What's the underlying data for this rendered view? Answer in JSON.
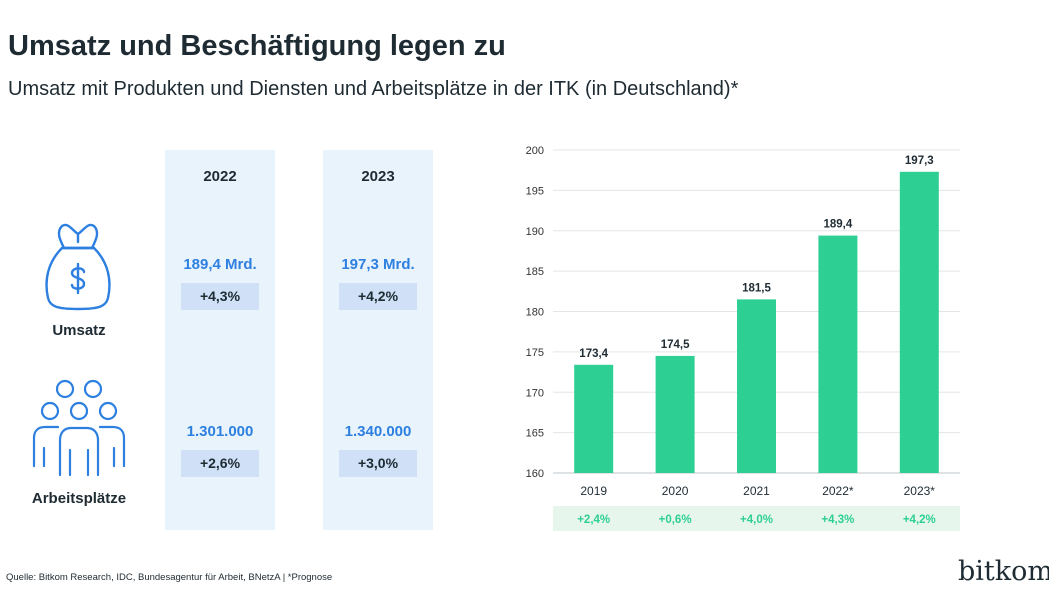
{
  "header": {
    "title": "Umsatz und Beschäftigung legen zu",
    "subtitle": "Umsatz mit Produkten und Diensten und Arbeitsplätze in der ITK (in Deutschland)*"
  },
  "table": {
    "columns": [
      {
        "year": "2022",
        "umsatz": "189,4 Mrd.",
        "umsatz_change": "+4,3%",
        "jobs": "1.301.000",
        "jobs_change": "+2,6%"
      },
      {
        "year": "2023",
        "umsatz": "197,3 Mrd.",
        "umsatz_change": "+4,2%",
        "jobs": "1.340.000",
        "jobs_change": "+3,0%"
      }
    ],
    "rows": {
      "umsatz_label": "Umsatz",
      "jobs_label": "Arbeitsplätze"
    },
    "icons": {
      "umsatz": "money-bag-icon",
      "jobs": "people-group-icon"
    }
  },
  "chart_data": {
    "type": "bar",
    "categories": [
      "2019",
      "2020",
      "2021",
      "2022*",
      "2023*"
    ],
    "values": [
      173.4,
      174.5,
      181.5,
      189.4,
      197.3
    ],
    "value_labels": [
      "173,4",
      "174,5",
      "181,5",
      "189,4",
      "197,3"
    ],
    "growth_labels": [
      "+2,4%",
      "+0,6%",
      "+4,0%",
      "+4,3%",
      "+4,2%"
    ],
    "ylim": [
      160,
      200
    ],
    "yticks": [
      160,
      165,
      170,
      175,
      180,
      185,
      190,
      195,
      200
    ],
    "grid": true,
    "colors": {
      "bar": "#2ecf93",
      "growth_bg": "#e6f6ec",
      "growth_text": "#2ecf93",
      "accent": "#2d7fe0"
    }
  },
  "footer": {
    "source": "Quelle: Bitkom Research, IDC, Bundesagentur für Arbeit, BNetzA | *Prognose",
    "logo": "bitkom"
  }
}
